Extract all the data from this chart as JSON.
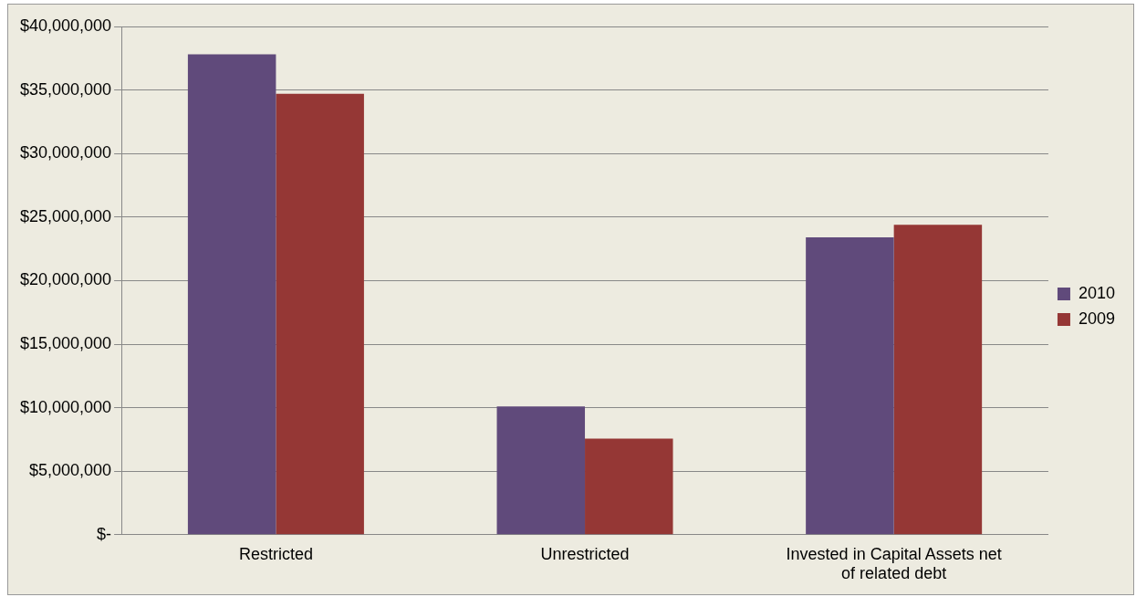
{
  "chart_data": {
    "type": "bar",
    "categories": [
      "Restricted",
      "Unrestricted",
      "Invested in Capital Assets net of related debt"
    ],
    "series": [
      {
        "name": "2010",
        "color": "#604a7b",
        "values": [
          37800000,
          10100000,
          23400000
        ]
      },
      {
        "name": "2009",
        "color": "#953735",
        "values": [
          34700000,
          7560000,
          24400000
        ]
      }
    ],
    "ylim": [
      0,
      40000000
    ],
    "yticks": [
      {
        "value": 0,
        "label": "$-"
      },
      {
        "value": 5000000,
        "label": "$5,000,000"
      },
      {
        "value": 10000000,
        "label": "$10,000,000"
      },
      {
        "value": 15000000,
        "label": "$15,000,000"
      },
      {
        "value": 20000000,
        "label": "$20,000,000"
      },
      {
        "value": 25000000,
        "label": "$25,000,000"
      },
      {
        "value": 30000000,
        "label": "$30,000,000"
      },
      {
        "value": 35000000,
        "label": "$35,000,000"
      },
      {
        "value": 40000000,
        "label": "$40,000,000"
      }
    ],
    "grid": "y",
    "legend": "right"
  }
}
